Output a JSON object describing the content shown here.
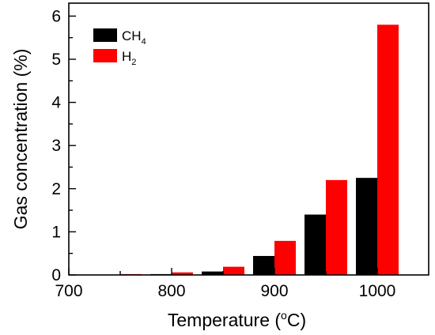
{
  "chart_data": {
    "type": "bar",
    "x": [
      750,
      800,
      850,
      900,
      950,
      1000
    ],
    "series": [
      {
        "name": "CH4",
        "name_base": "CH",
        "name_sub": "4",
        "color": "#000000",
        "values": [
          0.0,
          0.02,
          0.08,
          0.44,
          1.4,
          2.25
        ]
      },
      {
        "name": "H2",
        "name_base": "H",
        "name_sub": "2",
        "color": "#ff0000",
        "values": [
          0.02,
          0.06,
          0.19,
          0.79,
          2.2,
          5.8
        ]
      }
    ],
    "xlabel_base": "Temperature (",
    "xlabel_sup": "o",
    "xlabel_end": "C)",
    "ylabel": "Gas concentration (%)",
    "xlim": [
      700,
      1050
    ],
    "ylim": [
      0,
      6.3
    ],
    "xticks": [
      700,
      800,
      900,
      1000
    ],
    "yticks": [
      0,
      1,
      2,
      3,
      4,
      5,
      6
    ],
    "legend_position": "top-left",
    "grid": false
  }
}
